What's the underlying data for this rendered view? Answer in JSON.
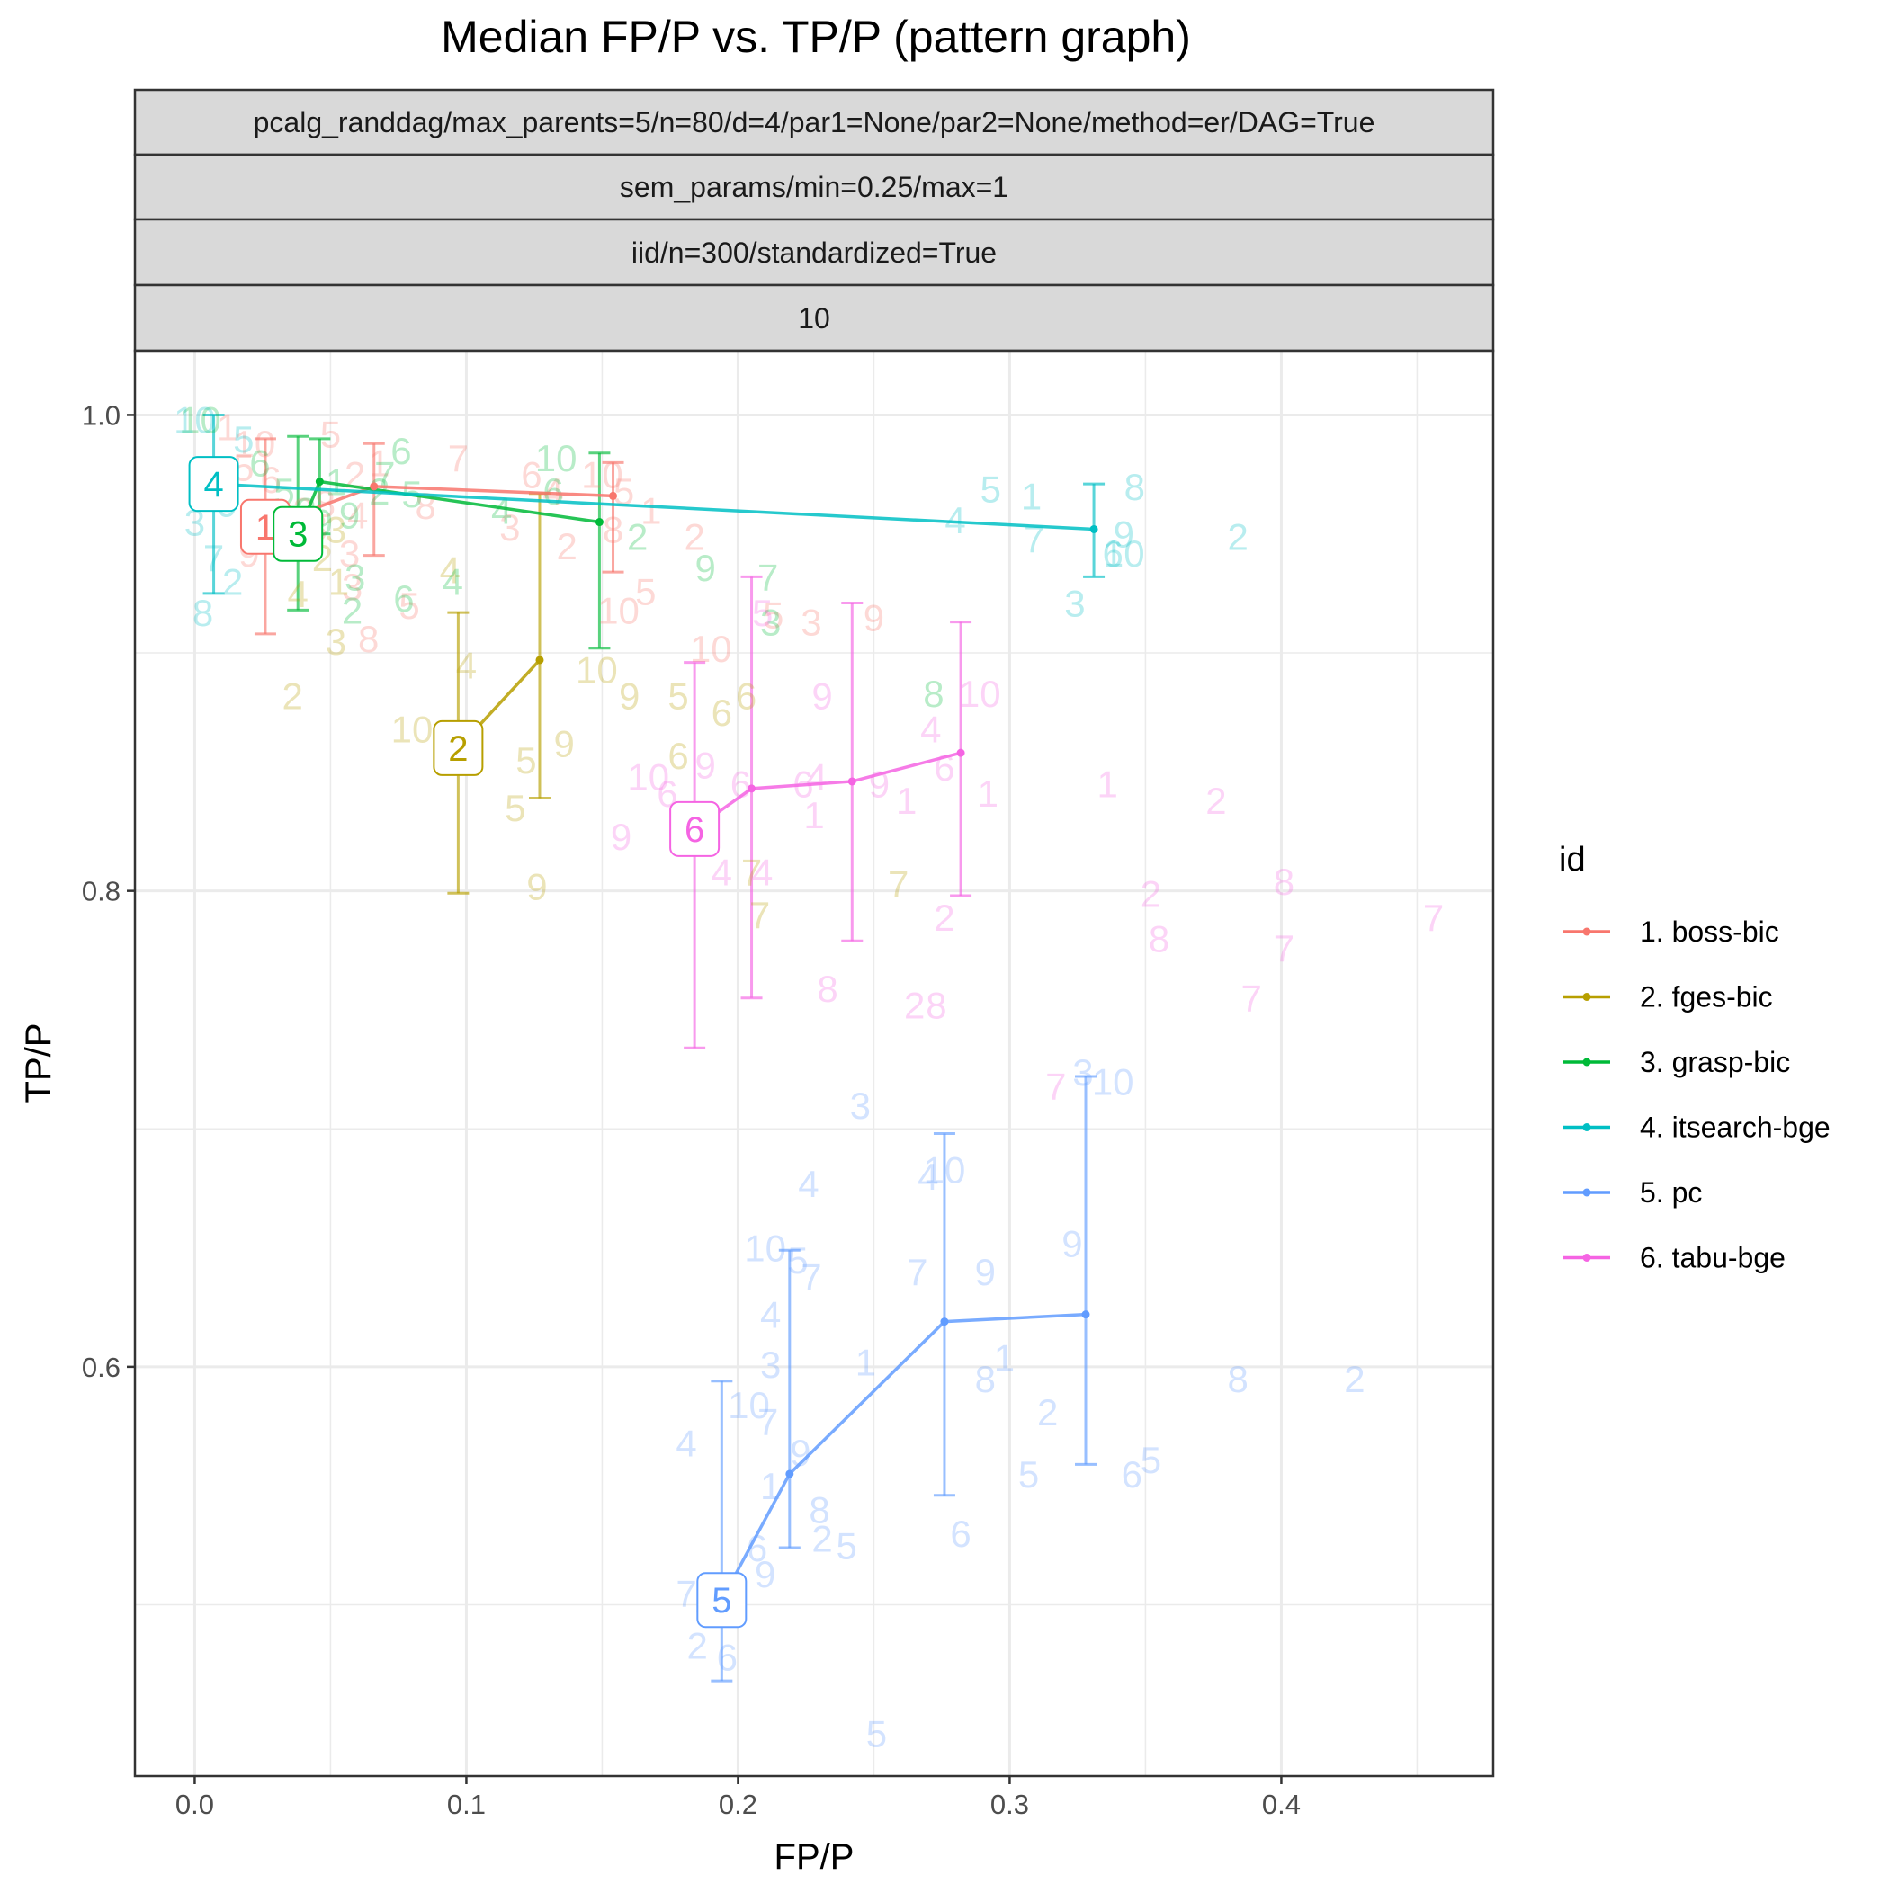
{
  "chart_data": {
    "type": "line",
    "title": "Median FP/P vs. TP/P (pattern graph)",
    "xlabel": "FP/P",
    "ylabel": "TP/P",
    "xlim": [
      -0.022,
      0.478
    ],
    "ylim": [
      0.428,
      1.027
    ],
    "x_ticks": [
      0.0,
      0.1,
      0.2,
      0.3,
      0.4
    ],
    "x_tick_labels": [
      "0.0",
      "0.1",
      "0.2",
      "0.3",
      "0.4"
    ],
    "y_ticks": [
      0.6,
      0.8,
      1.0
    ],
    "y_tick_labels": [
      "0.6",
      "0.8",
      "1.0"
    ],
    "grid": true,
    "strips": [
      "pcalg_randdag/max_parents=5/n=80/d=4/par1=None/par2=None/method=er/DAG=True",
      "sem_params/min=0.25/max=1",
      "iid/n=300/standardized=True",
      "10"
    ],
    "legend": {
      "title": "id",
      "position": "right"
    },
    "series": [
      {
        "name": "1. boss-bic",
        "label": "1",
        "color": "#F8766D",
        "points": [
          {
            "x": 0.026,
            "y": 0.953,
            "lo": 0.908,
            "hi": 0.99
          },
          {
            "x": 0.066,
            "y": 0.97,
            "lo": 0.941,
            "hi": 0.988
          },
          {
            "x": 0.154,
            "y": 0.966,
            "lo": 0.934,
            "hi": 0.98
          }
        ],
        "scatter": [
          {
            "x": 0.012,
            "y": 0.995,
            "t": "1"
          },
          {
            "x": 0.022,
            "y": 0.988,
            "t": "10"
          },
          {
            "x": 0.018,
            "y": 0.978,
            "t": "5"
          },
          {
            "x": 0.028,
            "y": 0.973,
            "t": "6"
          },
          {
            "x": 0.04,
            "y": 0.96,
            "t": "2"
          },
          {
            "x": 0.02,
            "y": 0.942,
            "t": "9"
          },
          {
            "x": 0.045,
            "y": 0.953,
            "t": "3"
          },
          {
            "x": 0.048,
            "y": 0.963,
            "t": "8"
          },
          {
            "x": 0.05,
            "y": 0.992,
            "t": "5"
          },
          {
            "x": 0.059,
            "y": 0.975,
            "t": "2"
          },
          {
            "x": 0.06,
            "y": 0.958,
            "t": "4"
          },
          {
            "x": 0.068,
            "y": 0.98,
            "t": "1"
          },
          {
            "x": 0.085,
            "y": 0.962,
            "t": "8"
          },
          {
            "x": 0.097,
            "y": 0.982,
            "t": "7"
          },
          {
            "x": 0.058,
            "y": 0.928,
            "t": "3"
          },
          {
            "x": 0.079,
            "y": 0.92,
            "t": "5"
          },
          {
            "x": 0.064,
            "y": 0.906,
            "t": "8"
          },
          {
            "x": 0.116,
            "y": 0.953,
            "t": "3"
          },
          {
            "x": 0.124,
            "y": 0.975,
            "t": "6"
          },
          {
            "x": 0.132,
            "y": 0.968,
            "t": "4"
          },
          {
            "x": 0.137,
            "y": 0.945,
            "t": "2"
          },
          {
            "x": 0.15,
            "y": 0.975,
            "t": "10"
          },
          {
            "x": 0.158,
            "y": 0.968,
            "t": "5"
          },
          {
            "x": 0.168,
            "y": 0.96,
            "t": "1"
          },
          {
            "x": 0.154,
            "y": 0.952,
            "t": "8"
          },
          {
            "x": 0.184,
            "y": 0.949,
            "t": "2"
          },
          {
            "x": 0.156,
            "y": 0.918,
            "t": "10"
          },
          {
            "x": 0.166,
            "y": 0.926,
            "t": "5"
          },
          {
            "x": 0.19,
            "y": 0.902,
            "t": "10"
          },
          {
            "x": 0.213,
            "y": 0.916,
            "t": "5"
          },
          {
            "x": 0.227,
            "y": 0.913,
            "t": "3"
          },
          {
            "x": 0.25,
            "y": 0.915,
            "t": "9"
          },
          {
            "x": 0.057,
            "y": 0.942,
            "t": "3"
          }
        ]
      },
      {
        "name": "2. fges-bic",
        "label": "2",
        "color": "#B79F00",
        "points": [
          {
            "x": 0.097,
            "y": 0.86,
            "lo": 0.799,
            "hi": 0.917
          },
          {
            "x": 0.127,
            "y": 0.897,
            "lo": 0.839,
            "hi": 0.967
          }
        ],
        "scatter": [
          {
            "x": 0.036,
            "y": 0.882,
            "t": "2"
          },
          {
            "x": 0.047,
            "y": 0.94,
            "t": "2"
          },
          {
            "x": 0.053,
            "y": 0.93,
            "t": "1"
          },
          {
            "x": 0.052,
            "y": 0.952,
            "t": "3"
          },
          {
            "x": 0.052,
            "y": 0.905,
            "t": "3"
          },
          {
            "x": 0.038,
            "y": 0.925,
            "t": "4"
          },
          {
            "x": 0.08,
            "y": 0.868,
            "t": "10"
          },
          {
            "x": 0.092,
            "y": 0.855,
            "t": "8"
          },
          {
            "x": 0.102,
            "y": 0.855,
            "t": "4"
          },
          {
            "x": 0.1,
            "y": 0.895,
            "t": "4"
          },
          {
            "x": 0.094,
            "y": 0.935,
            "t": "4"
          },
          {
            "x": 0.122,
            "y": 0.855,
            "t": "5"
          },
          {
            "x": 0.118,
            "y": 0.835,
            "t": "5"
          },
          {
            "x": 0.136,
            "y": 0.862,
            "t": "9"
          },
          {
            "x": 0.126,
            "y": 0.802,
            "t": "9"
          },
          {
            "x": 0.148,
            "y": 0.893,
            "t": "10"
          },
          {
            "x": 0.16,
            "y": 0.882,
            "t": "9"
          },
          {
            "x": 0.178,
            "y": 0.882,
            "t": "5"
          },
          {
            "x": 0.194,
            "y": 0.875,
            "t": "6"
          },
          {
            "x": 0.203,
            "y": 0.882,
            "t": "6"
          },
          {
            "x": 0.178,
            "y": 0.857,
            "t": "6"
          },
          {
            "x": 0.205,
            "y": 0.808,
            "t": "7"
          },
          {
            "x": 0.208,
            "y": 0.79,
            "t": "7"
          },
          {
            "x": 0.259,
            "y": 0.803,
            "t": "7"
          }
        ]
      },
      {
        "name": "3. grasp-bic",
        "label": "3",
        "color": "#00BA38",
        "points": [
          {
            "x": 0.038,
            "y": 0.95,
            "lo": 0.918,
            "hi": 0.991
          },
          {
            "x": 0.046,
            "y": 0.972,
            "lo": 0.95,
            "hi": 0.99
          },
          {
            "x": 0.149,
            "y": 0.955,
            "lo": 0.902,
            "hi": 0.984
          }
        ],
        "scatter": [
          {
            "x": 0.002,
            "y": 0.998,
            "t": "10"
          },
          {
            "x": 0.024,
            "y": 0.98,
            "t": "6"
          },
          {
            "x": 0.033,
            "y": 0.968,
            "t": "5"
          },
          {
            "x": 0.041,
            "y": 0.96,
            "t": "3"
          },
          {
            "x": 0.047,
            "y": 0.955,
            "t": "9"
          },
          {
            "x": 0.057,
            "y": 0.958,
            "t": "9"
          },
          {
            "x": 0.052,
            "y": 0.972,
            "t": "1"
          },
          {
            "x": 0.07,
            "y": 0.975,
            "t": "7"
          },
          {
            "x": 0.076,
            "y": 0.985,
            "t": "6"
          },
          {
            "x": 0.068,
            "y": 0.968,
            "t": "2"
          },
          {
            "x": 0.08,
            "y": 0.967,
            "t": "5"
          },
          {
            "x": 0.058,
            "y": 0.918,
            "t": "2"
          },
          {
            "x": 0.059,
            "y": 0.932,
            "t": "3"
          },
          {
            "x": 0.077,
            "y": 0.923,
            "t": "6"
          },
          {
            "x": 0.095,
            "y": 0.93,
            "t": "4"
          },
          {
            "x": 0.113,
            "y": 0.96,
            "t": "4"
          },
          {
            "x": 0.132,
            "y": 0.968,
            "t": "6"
          },
          {
            "x": 0.133,
            "y": 0.982,
            "t": "10"
          },
          {
            "x": 0.163,
            "y": 0.949,
            "t": "2"
          },
          {
            "x": 0.188,
            "y": 0.936,
            "t": "9"
          },
          {
            "x": 0.211,
            "y": 0.932,
            "t": "7"
          },
          {
            "x": 0.212,
            "y": 0.913,
            "t": "3"
          },
          {
            "x": 0.272,
            "y": 0.883,
            "t": "8"
          }
        ]
      },
      {
        "name": "4. itsearch-bge",
        "label": "4",
        "color": "#00BFC4",
        "points": [
          {
            "x": 0.007,
            "y": 0.971,
            "lo": 0.925,
            "hi": 1.0
          },
          {
            "x": 0.331,
            "y": 0.952,
            "lo": 0.932,
            "hi": 0.971
          }
        ],
        "scatter": [
          {
            "x": 0.0,
            "y": 0.998,
            "t": "10"
          },
          {
            "x": 0.005,
            "y": 0.975,
            "t": "5"
          },
          {
            "x": 0.0,
            "y": 0.955,
            "t": "3"
          },
          {
            "x": 0.007,
            "y": 0.94,
            "t": "7"
          },
          {
            "x": 0.014,
            "y": 0.93,
            "t": "2"
          },
          {
            "x": 0.003,
            "y": 0.917,
            "t": "8"
          },
          {
            "x": 0.018,
            "y": 0.99,
            "t": "5"
          },
          {
            "x": 0.012,
            "y": 0.963,
            "t": "9"
          },
          {
            "x": 0.28,
            "y": 0.956,
            "t": "4"
          },
          {
            "x": 0.293,
            "y": 0.969,
            "t": "5"
          },
          {
            "x": 0.308,
            "y": 0.966,
            "t": "1"
          },
          {
            "x": 0.309,
            "y": 0.948,
            "t": "7"
          },
          {
            "x": 0.346,
            "y": 0.97,
            "t": "8"
          },
          {
            "x": 0.342,
            "y": 0.95,
            "t": "9"
          },
          {
            "x": 0.342,
            "y": 0.942,
            "t": "10"
          },
          {
            "x": 0.324,
            "y": 0.921,
            "t": "3"
          },
          {
            "x": 0.384,
            "y": 0.949,
            "t": "2"
          },
          {
            "x": 0.338,
            "y": 0.942,
            "t": "6"
          }
        ]
      },
      {
        "name": "5. pc",
        "label": "5",
        "color": "#619CFF",
        "points": [
          {
            "x": 0.194,
            "y": 0.502,
            "lo": 0.468,
            "hi": 0.594
          },
          {
            "x": 0.219,
            "y": 0.555,
            "lo": 0.524,
            "hi": 0.649
          },
          {
            "x": 0.276,
            "y": 0.619,
            "lo": 0.546,
            "hi": 0.698
          },
          {
            "x": 0.328,
            "y": 0.622,
            "lo": 0.559,
            "hi": 0.722
          }
        ],
        "scatter": [
          {
            "x": 0.181,
            "y": 0.505,
            "t": "7"
          },
          {
            "x": 0.188,
            "y": 0.5,
            "t": "8"
          },
          {
            "x": 0.185,
            "y": 0.483,
            "t": "2"
          },
          {
            "x": 0.196,
            "y": 0.478,
            "t": "6"
          },
          {
            "x": 0.181,
            "y": 0.568,
            "t": "4"
          },
          {
            "x": 0.204,
            "y": 0.584,
            "t": "10"
          },
          {
            "x": 0.211,
            "y": 0.577,
            "t": "7"
          },
          {
            "x": 0.212,
            "y": 0.55,
            "t": "1"
          },
          {
            "x": 0.207,
            "y": 0.524,
            "t": "6"
          },
          {
            "x": 0.21,
            "y": 0.513,
            "t": "9"
          },
          {
            "x": 0.223,
            "y": 0.564,
            "t": "9"
          },
          {
            "x": 0.23,
            "y": 0.54,
            "t": "8"
          },
          {
            "x": 0.231,
            "y": 0.528,
            "t": "2"
          },
          {
            "x": 0.24,
            "y": 0.525,
            "t": "5"
          },
          {
            "x": 0.212,
            "y": 0.622,
            "t": "4"
          },
          {
            "x": 0.212,
            "y": 0.601,
            "t": "3"
          },
          {
            "x": 0.21,
            "y": 0.65,
            "t": "10"
          },
          {
            "x": 0.222,
            "y": 0.645,
            "t": "5"
          },
          {
            "x": 0.227,
            "y": 0.638,
            "t": "7"
          },
          {
            "x": 0.226,
            "y": 0.677,
            "t": "4"
          },
          {
            "x": 0.247,
            "y": 0.602,
            "t": "1"
          },
          {
            "x": 0.245,
            "y": 0.71,
            "t": "3"
          },
          {
            "x": 0.266,
            "y": 0.64,
            "t": "7"
          },
          {
            "x": 0.27,
            "y": 0.68,
            "t": "4"
          },
          {
            "x": 0.276,
            "y": 0.683,
            "t": "10"
          },
          {
            "x": 0.291,
            "y": 0.64,
            "t": "9"
          },
          {
            "x": 0.298,
            "y": 0.604,
            "t": "1"
          },
          {
            "x": 0.291,
            "y": 0.595,
            "t": "8"
          },
          {
            "x": 0.314,
            "y": 0.581,
            "t": "2"
          },
          {
            "x": 0.307,
            "y": 0.555,
            "t": "5"
          },
          {
            "x": 0.282,
            "y": 0.53,
            "t": "6"
          },
          {
            "x": 0.327,
            "y": 0.724,
            "t": "3"
          },
          {
            "x": 0.338,
            "y": 0.72,
            "t": "10"
          },
          {
            "x": 0.323,
            "y": 0.652,
            "t": "9"
          },
          {
            "x": 0.345,
            "y": 0.555,
            "t": "6"
          },
          {
            "x": 0.352,
            "y": 0.561,
            "t": "5"
          },
          {
            "x": 0.384,
            "y": 0.595,
            "t": "8"
          },
          {
            "x": 0.427,
            "y": 0.595,
            "t": "2"
          },
          {
            "x": 0.251,
            "y": 0.446,
            "t": "5"
          }
        ]
      },
      {
        "name": "6. tabu-bge",
        "label": "6",
        "color": "#F564E3",
        "points": [
          {
            "x": 0.184,
            "y": 0.826,
            "lo": 0.734,
            "hi": 0.896
          },
          {
            "x": 0.205,
            "y": 0.843,
            "lo": 0.755,
            "hi": 0.932
          },
          {
            "x": 0.242,
            "y": 0.846,
            "lo": 0.779,
            "hi": 0.921
          },
          {
            "x": 0.282,
            "y": 0.858,
            "lo": 0.798,
            "hi": 0.913
          }
        ],
        "scatter": [
          {
            "x": 0.157,
            "y": 0.823,
            "t": "9"
          },
          {
            "x": 0.167,
            "y": 0.848,
            "t": "10"
          },
          {
            "x": 0.174,
            "y": 0.841,
            "t": "6"
          },
          {
            "x": 0.188,
            "y": 0.853,
            "t": "9"
          },
          {
            "x": 0.194,
            "y": 0.808,
            "t": "4"
          },
          {
            "x": 0.201,
            "y": 0.845,
            "t": "6"
          },
          {
            "x": 0.209,
            "y": 0.808,
            "t": "4"
          },
          {
            "x": 0.224,
            "y": 0.845,
            "t": "6"
          },
          {
            "x": 0.229,
            "y": 0.848,
            "t": "4"
          },
          {
            "x": 0.228,
            "y": 0.832,
            "t": "1"
          },
          {
            "x": 0.252,
            "y": 0.845,
            "t": "9"
          },
          {
            "x": 0.262,
            "y": 0.838,
            "t": "1"
          },
          {
            "x": 0.271,
            "y": 0.868,
            "t": "4"
          },
          {
            "x": 0.276,
            "y": 0.852,
            "t": "6"
          },
          {
            "x": 0.292,
            "y": 0.841,
            "t": "1"
          },
          {
            "x": 0.231,
            "y": 0.882,
            "t": "9"
          },
          {
            "x": 0.209,
            "y": 0.917,
            "t": "5"
          },
          {
            "x": 0.276,
            "y": 0.789,
            "t": "2"
          },
          {
            "x": 0.233,
            "y": 0.759,
            "t": "8"
          },
          {
            "x": 0.265,
            "y": 0.752,
            "t": "2"
          },
          {
            "x": 0.273,
            "y": 0.752,
            "t": "8"
          },
          {
            "x": 0.289,
            "y": 0.883,
            "t": "10"
          },
          {
            "x": 0.336,
            "y": 0.845,
            "t": "1"
          },
          {
            "x": 0.376,
            "y": 0.838,
            "t": "2"
          },
          {
            "x": 0.352,
            "y": 0.799,
            "t": "2"
          },
          {
            "x": 0.355,
            "y": 0.78,
            "t": "8"
          },
          {
            "x": 0.401,
            "y": 0.804,
            "t": "8"
          },
          {
            "x": 0.401,
            "y": 0.776,
            "t": "7"
          },
          {
            "x": 0.389,
            "y": 0.755,
            "t": "7"
          },
          {
            "x": 0.456,
            "y": 0.789,
            "t": "7"
          },
          {
            "x": 0.317,
            "y": 0.718,
            "t": "7"
          }
        ]
      }
    ]
  }
}
